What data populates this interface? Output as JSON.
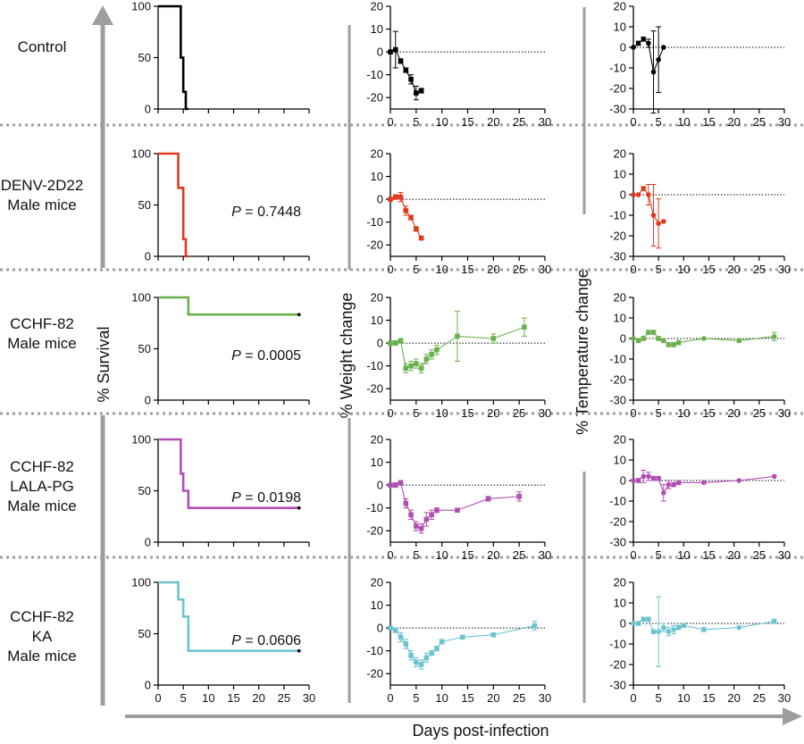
{
  "figure": {
    "row_labels": [
      [
        "Control"
      ],
      [
        "DENV-2D22",
        "Male mice"
      ],
      [
        "CCHF-82",
        "Male mice"
      ],
      [
        "CCHF-82",
        "LALA-PG",
        "Male mice"
      ],
      [
        "CCHF-82",
        "KA",
        "Male mice"
      ]
    ],
    "survival_axis_title": "% Survival",
    "weight_axis_title": "% Weight change",
    "temperature_axis_title": "% Temperature change",
    "x_axis_title": "Days post-infection",
    "colors": {
      "control": "#000000",
      "denv": "#e03a1e",
      "cchf": "#6ab04c",
      "lalapg": "#b04fb0",
      "ka": "#6cc3cf",
      "arrow": "#9e9e9e",
      "divider": "#9e9e9e"
    }
  },
  "chart_data": [
    {
      "type": "line",
      "panel": "survival",
      "row": 0,
      "xlim": [
        0,
        30
      ],
      "ylim": [
        0,
        100
      ],
      "yticks": [
        0,
        50,
        100
      ],
      "xticks": [
        0,
        5,
        10,
        15,
        20,
        25,
        30
      ],
      "show_xticklabels": false,
      "series": [
        {
          "color": "#000000",
          "step": true,
          "x": [
            0,
            4.5,
            4.5,
            5,
            5,
            5.5,
            5.5,
            6,
            6
          ],
          "y": [
            100,
            100,
            50,
            50,
            16.7,
            16.7,
            0,
            0,
            0
          ]
        }
      ],
      "p_value": null
    },
    {
      "type": "line",
      "panel": "weight",
      "row": 0,
      "xlim": [
        0,
        30
      ],
      "ylim": [
        -25,
        20
      ],
      "yticks": [
        20,
        10,
        0,
        -10,
        -20
      ],
      "series": [
        {
          "color": "#000000",
          "marker": "square",
          "x": [
            0,
            1,
            2,
            3,
            4,
            5,
            6
          ],
          "y": [
            0,
            1,
            -4,
            -8,
            -12,
            -18,
            -17
          ],
          "err": [
            0,
            8,
            1,
            1,
            2,
            3,
            1
          ]
        }
      ]
    },
    {
      "type": "line",
      "panel": "temperature",
      "row": 0,
      "xlim": [
        0,
        30
      ],
      "ylim": [
        -30,
        20
      ],
      "yticks": [
        20,
        10,
        0,
        -10,
        -20,
        -30
      ],
      "series": [
        {
          "color": "#000000",
          "marker": "circle",
          "x": [
            0,
            1,
            2,
            3,
            4,
            5,
            6
          ],
          "y": [
            0,
            2,
            4,
            2,
            -12,
            -6,
            0
          ],
          "err": [
            0,
            1,
            1,
            2,
            20,
            16,
            0
          ]
        }
      ]
    },
    {
      "type": "line",
      "panel": "survival",
      "row": 1,
      "xlim": [
        0,
        30
      ],
      "ylim": [
        0,
        100
      ],
      "yticks": [
        0,
        50,
        100
      ],
      "xticks": [
        0,
        5,
        10,
        15,
        20,
        25,
        30
      ],
      "show_xticklabels": false,
      "series": [
        {
          "color": "#e03a1e",
          "step": true,
          "x": [
            0,
            4,
            4,
            5,
            5,
            5.5,
            5.5,
            6,
            6
          ],
          "y": [
            100,
            100,
            66.7,
            66.7,
            16.7,
            16.7,
            0,
            0,
            0
          ]
        }
      ],
      "p_value": "0.7448"
    },
    {
      "type": "line",
      "panel": "weight",
      "row": 1,
      "xlim": [
        0,
        30
      ],
      "ylim": [
        -25,
        20
      ],
      "yticks": [
        20,
        10,
        0,
        -10,
        -20
      ],
      "series": [
        {
          "color": "#e03a1e",
          "marker": "square",
          "x": [
            0,
            1,
            2,
            3,
            4,
            5,
            6
          ],
          "y": [
            0,
            1,
            1,
            -5,
            -8,
            -13,
            -17
          ],
          "err": [
            0,
            1,
            2,
            2,
            1,
            1,
            0
          ]
        }
      ]
    },
    {
      "type": "line",
      "panel": "temperature",
      "row": 1,
      "xlim": [
        0,
        30
      ],
      "ylim": [
        -30,
        20
      ],
      "yticks": [
        20,
        10,
        0,
        -10,
        -20,
        -30
      ],
      "series": [
        {
          "color": "#e03a1e",
          "marker": "circle",
          "x": [
            0,
            1,
            2,
            3,
            4,
            5,
            6
          ],
          "y": [
            0,
            0,
            3,
            0,
            -10,
            -14,
            -13
          ],
          "err": [
            0,
            0,
            1,
            5,
            15,
            12,
            0
          ]
        }
      ]
    },
    {
      "type": "line",
      "panel": "survival",
      "row": 2,
      "xlim": [
        0,
        30
      ],
      "ylim": [
        0,
        100
      ],
      "yticks": [
        0,
        50,
        100
      ],
      "xticks": [
        0,
        5,
        10,
        15,
        20,
        25,
        30
      ],
      "show_xticklabels": false,
      "series": [
        {
          "color": "#6ab04c",
          "step": true,
          "x": [
            0,
            6,
            6,
            28
          ],
          "y": [
            100,
            100,
            83.3,
            83.3
          ]
        }
      ],
      "p_value": "0.0005"
    },
    {
      "type": "line",
      "panel": "weight",
      "row": 2,
      "xlim": [
        0,
        30
      ],
      "ylim": [
        -25,
        20
      ],
      "yticks": [
        20,
        10,
        0,
        -10,
        -20
      ],
      "series": [
        {
          "color": "#6ab04c",
          "marker": "square",
          "x": [
            0,
            1,
            2,
            3,
            4,
            5,
            6,
            7,
            8,
            9,
            13,
            20,
            26
          ],
          "y": [
            0,
            0,
            1,
            -11,
            -10,
            -9,
            -11,
            -7,
            -5,
            -3,
            3,
            2,
            7
          ],
          "err": [
            0,
            1,
            1,
            2,
            2,
            2,
            2,
            2,
            2,
            2,
            11,
            2,
            4
          ]
        }
      ]
    },
    {
      "type": "line",
      "panel": "temperature",
      "row": 2,
      "xlim": [
        0,
        30
      ],
      "ylim": [
        -30,
        20
      ],
      "yticks": [
        20,
        10,
        0,
        -10,
        -20,
        -30
      ],
      "series": [
        {
          "color": "#6ab04c",
          "marker": "circle",
          "x": [
            0,
            1,
            2,
            3,
            4,
            5,
            6,
            7,
            8,
            9,
            14,
            21,
            28
          ],
          "y": [
            0,
            -1,
            0,
            3,
            3,
            0,
            -1,
            -3,
            -3,
            -2,
            0,
            -1,
            1
          ],
          "err": [
            0,
            1,
            1,
            1,
            1,
            1,
            1,
            1,
            1,
            1,
            0,
            1,
            2
          ]
        }
      ]
    },
    {
      "type": "line",
      "panel": "survival",
      "row": 3,
      "xlim": [
        0,
        30
      ],
      "ylim": [
        0,
        100
      ],
      "yticks": [
        0,
        50,
        100
      ],
      "xticks": [
        0,
        5,
        10,
        15,
        20,
        25,
        30
      ],
      "show_xticklabels": false,
      "series": [
        {
          "color": "#b04fb0",
          "step": true,
          "x": [
            0,
            4.5,
            4.5,
            5,
            5,
            6,
            6,
            28
          ],
          "y": [
            100,
            100,
            66.7,
            66.7,
            50,
            50,
            33.3,
            33.3
          ]
        }
      ],
      "p_value": "0.0198"
    },
    {
      "type": "line",
      "panel": "weight",
      "row": 3,
      "xlim": [
        0,
        30
      ],
      "ylim": [
        -25,
        20
      ],
      "yticks": [
        20,
        10,
        0,
        -10,
        -20
      ],
      "series": [
        {
          "color": "#b04fb0",
          "marker": "square",
          "x": [
            0,
            1,
            2,
            3,
            4,
            5,
            6,
            7,
            8,
            9,
            13,
            19,
            25
          ],
          "y": [
            0,
            0,
            1,
            -8,
            -13,
            -18,
            -19,
            -15,
            -13,
            -11,
            -11,
            -6,
            -5
          ],
          "err": [
            0,
            1,
            1,
            2,
            2,
            2,
            2,
            3,
            2,
            1,
            0,
            1,
            2
          ]
        }
      ]
    },
    {
      "type": "line",
      "panel": "temperature",
      "row": 3,
      "xlim": [
        0,
        30
      ],
      "ylim": [
        -30,
        20
      ],
      "yticks": [
        20,
        10,
        0,
        -10,
        -20,
        -30
      ],
      "series": [
        {
          "color": "#b04fb0",
          "marker": "circle",
          "x": [
            0,
            1,
            2,
            3,
            4,
            5,
            6,
            7,
            8,
            9,
            14,
            21,
            28
          ],
          "y": [
            0,
            0,
            2,
            2,
            1,
            1,
            -6,
            -2,
            -2,
            -1,
            -1,
            0,
            2
          ],
          "err": [
            0,
            1,
            3,
            2,
            1,
            1,
            4,
            2,
            1,
            1,
            0,
            0,
            0
          ]
        }
      ]
    },
    {
      "type": "line",
      "panel": "survival",
      "row": 4,
      "xlim": [
        0,
        30
      ],
      "ylim": [
        0,
        100
      ],
      "yticks": [
        0,
        50,
        100
      ],
      "xticks": [
        0,
        5,
        10,
        15,
        20,
        25,
        30
      ],
      "show_xticklabels": true,
      "series": [
        {
          "color": "#6cc3cf",
          "step": true,
          "x": [
            0,
            4,
            4,
            5,
            5,
            6,
            6,
            28
          ],
          "y": [
            100,
            100,
            83.3,
            83.3,
            66.7,
            66.7,
            33.3,
            33.3
          ]
        }
      ],
      "p_value": "0.0606"
    },
    {
      "type": "line",
      "panel": "weight",
      "row": 4,
      "xlim": [
        0,
        30
      ],
      "ylim": [
        -25,
        20
      ],
      "yticks": [
        20,
        10,
        0,
        -10,
        -20
      ],
      "series": [
        {
          "color": "#6cc3cf",
          "marker": "square",
          "x": [
            0,
            1,
            2,
            3,
            4,
            5,
            6,
            7,
            8,
            9,
            10,
            14,
            20,
            28
          ],
          "y": [
            0,
            -1,
            -4,
            -7,
            -12,
            -15,
            -16,
            -13,
            -11,
            -9,
            -6,
            -4,
            -3,
            1
          ],
          "err": [
            0,
            1,
            2,
            2,
            2,
            2,
            2,
            2,
            1,
            1,
            1,
            0,
            0,
            2
          ]
        }
      ]
    },
    {
      "type": "line",
      "panel": "temperature",
      "row": 4,
      "xlim": [
        0,
        30
      ],
      "ylim": [
        -30,
        20
      ],
      "yticks": [
        20,
        10,
        0,
        -10,
        -20,
        -30
      ],
      "series": [
        {
          "color": "#6cc3cf",
          "marker": "circle",
          "x": [
            0,
            1,
            2,
            3,
            4,
            5,
            6,
            7,
            8,
            9,
            10,
            14,
            21,
            28
          ],
          "y": [
            0,
            0,
            2,
            2,
            -4,
            -4,
            -2,
            -4,
            -3,
            -2,
            -1,
            -3,
            -2,
            1
          ],
          "err": [
            0,
            1,
            1,
            1,
            1,
            17,
            2,
            2,
            2,
            1,
            1,
            1,
            0,
            1
          ]
        }
      ]
    }
  ]
}
